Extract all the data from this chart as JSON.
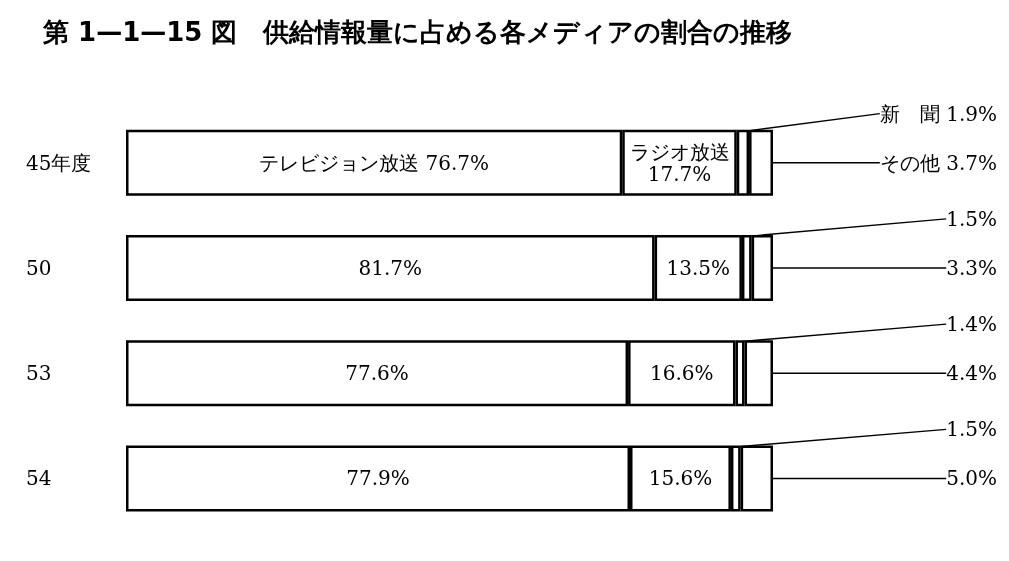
{
  "chart_data": {
    "type": "bar",
    "orientation": "horizontal",
    "stacked": true,
    "title": "第 1—1—15 図　供給情報量に占める各メディアの割合の推移",
    "categories": [
      "45年度",
      "50",
      "53",
      "54"
    ],
    "series": [
      {
        "color": "#ffffff",
        "values": [
          76.7,
          81.7,
          77.6,
          77.9
        ],
        "value_labels": [
          "テレビジョン放送 76.7%",
          "81.7%",
          "77.6%",
          "77.9%"
        ]
      },
      {
        "color": "#ffffff",
        "values": [
          17.7,
          13.5,
          16.6,
          15.6
        ],
        "value_labels": [
          "ラジオ放送\n17.7%",
          "13.5%",
          "16.6%",
          "15.6%"
        ]
      },
      {
        "color": "#ffffff",
        "values": [
          1.9,
          1.5,
          1.4,
          1.5
        ],
        "value_labels": [
          "新　聞 1.9%",
          "1.5%",
          "1.4%",
          "1.5%"
        ]
      },
      {
        "color": "#ffffff",
        "values": [
          3.7,
          3.3,
          4.4,
          5.0
        ],
        "value_labels": [
          "その他 3.7%",
          "3.3%",
          "4.4%",
          "5.0%"
        ]
      }
    ]
  }
}
